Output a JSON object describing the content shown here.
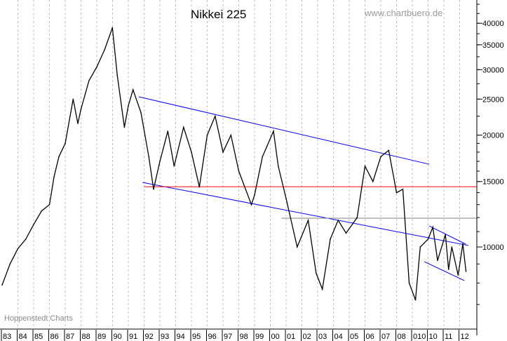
{
  "chart_data": {
    "type": "line",
    "title": "Nikkei 225",
    "watermark": "www.chartbuero.de",
    "source": "Hoppenstedt Charts",
    "y_scale": "log",
    "ylim": [
      6040,
      46200
    ],
    "xlim": [
      1983,
      2013.2
    ],
    "y_ticks": [
      10000,
      15000,
      20000,
      25000,
      30000,
      35000,
      40000
    ],
    "y_tick_labels": [
      "10000",
      "15000",
      "20000",
      "25000",
      "30000",
      "35000",
      "40000"
    ],
    "x_tick_labels": [
      "83",
      "84",
      "85",
      "86",
      "87",
      "88",
      "89",
      "90",
      "91",
      "92",
      "93",
      "94",
      "95",
      "96",
      "97",
      "98",
      "99",
      "00",
      "01",
      "02",
      "03",
      "04",
      "05",
      "06",
      "07",
      "08",
      "010",
      "10",
      "11",
      "12"
    ],
    "grid": "vertical dashed",
    "colors": {
      "price": "#000000",
      "trend": "#0000ff",
      "support": "#ff0000",
      "level": "#808080",
      "grid": "#c0c0c0"
    },
    "series": [
      {
        "x": [
          1983.0,
          1983.5,
          1984.0,
          1984.5,
          1985.0,
          1985.5,
          1986.0,
          1986.3,
          1986.6,
          1987.0,
          1987.5,
          1987.8,
          1988.0,
          1988.5,
          1989.0,
          1989.5,
          1989.99,
          1990.3,
          1990.75,
          1991.0,
          1991.3,
          1991.8,
          1992.3,
          1992.6,
          1993.0,
          1993.5,
          1993.9,
          1994.5,
          1995.0,
          1995.5,
          1996.0,
          1996.5,
          1997.0,
          1997.5,
          1998.0,
          1998.8,
          1999.0,
          1999.5,
          2000.2,
          2000.5,
          2001.0,
          2001.7,
          2002.4,
          2002.9,
          2003.3,
          2003.8,
          2004.3,
          2004.8,
          2005.5,
          2006.0,
          2006.5,
          2007.0,
          2007.5,
          2008.0,
          2008.4,
          2008.8,
          2009.2,
          2009.5,
          2010.0,
          2010.3,
          2010.6,
          2011.1,
          2011.3,
          2011.5,
          2011.9,
          2012.2,
          2012.4
        ],
        "values": [
          7900,
          9000,
          9900,
          10500,
          11500,
          12500,
          13000,
          15500,
          17500,
          19000,
          25000,
          21500,
          23500,
          28000,
          30500,
          34000,
          38900,
          29000,
          21000,
          24000,
          26500,
          23000,
          17500,
          14300,
          17000,
          20500,
          16500,
          21000,
          18000,
          14500,
          20000,
          22500,
          18000,
          20000,
          16000,
          13000,
          13800,
          17500,
          20500,
          16500,
          13500,
          10000,
          11800,
          8500,
          7700,
          10500,
          11800,
          10900,
          12000,
          16500,
          15000,
          17500,
          18200,
          14000,
          14300,
          8000,
          7200,
          10000,
          10500,
          11300,
          9200,
          10800,
          8700,
          10000,
          8400,
          10200,
          8600
        ]
      }
    ],
    "lines": [
      {
        "type": "trend-upper",
        "color": "#0000ff",
        "from": [
          1991.67,
          25360
        ],
        "to": [
          2010.07,
          16700
        ]
      },
      {
        "type": "trend-lower",
        "color": "#0000ff",
        "from": [
          1991.9,
          14920
        ],
        "to": [
          2012.56,
          10090
        ]
      },
      {
        "type": "channel-upper",
        "color": "#0000ff",
        "from": [
          2010.07,
          11390
        ],
        "to": [
          2012.4,
          10170
        ]
      },
      {
        "type": "channel-lower",
        "color": "#0000ff",
        "from": [
          2009.76,
          9130
        ],
        "to": [
          2012.3,
          8120
        ]
      },
      {
        "type": "support",
        "color": "#ff0000",
        "from": [
          1992.0,
          14530
        ],
        "to": [
          2013.1,
          14530
        ]
      },
      {
        "type": "level",
        "color": "#808080",
        "from": [
          2000.7,
          11950
        ],
        "to": [
          2013.1,
          11950
        ]
      }
    ]
  }
}
